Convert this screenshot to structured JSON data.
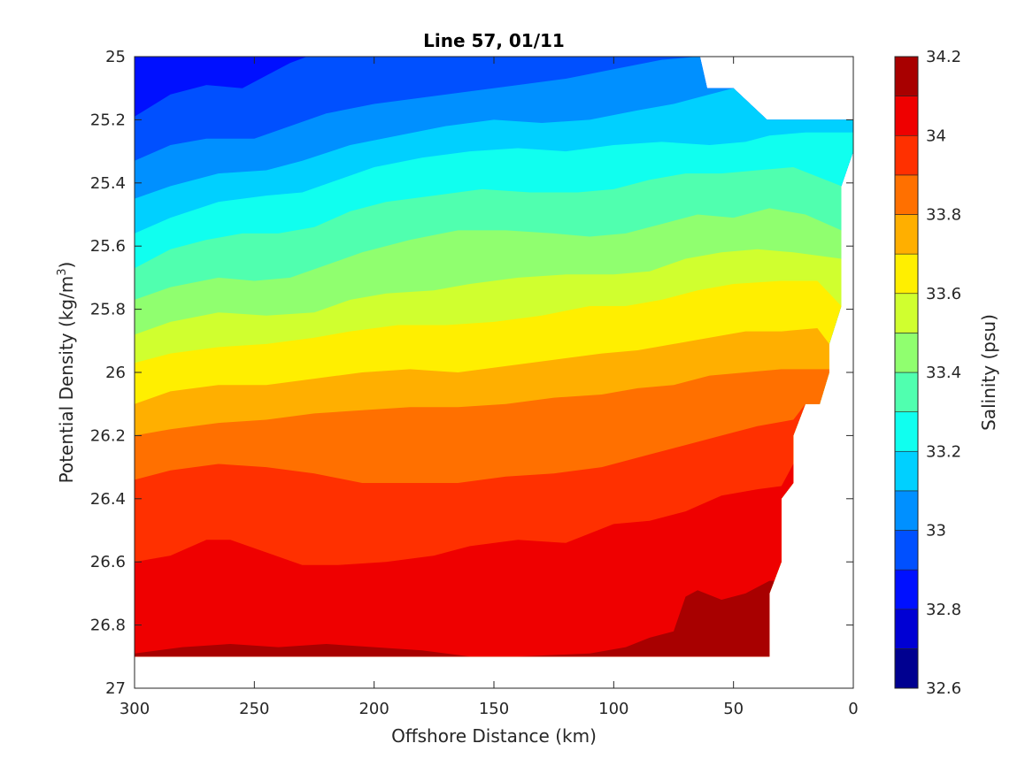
{
  "chart_data": {
    "type": "contour",
    "title": "Line 57, 01/11",
    "xlabel": "Offshore Distance (km)",
    "ylabel_main": "Potential Density (kg/m",
    "ylabel_sup": "3",
    "ylabel_close": ")",
    "xlim": [
      300,
      0
    ],
    "ylim": [
      25,
      27
    ],
    "x_ticks": [
      300,
      250,
      200,
      150,
      100,
      50,
      0
    ],
    "x_tick_labels": [
      "300",
      "250",
      "200",
      "150",
      "100",
      "50",
      "0"
    ],
    "y_ticks": [
      25,
      25.2,
      25.4,
      25.6,
      25.8,
      26,
      26.2,
      26.4,
      26.6,
      26.8,
      27
    ],
    "y_tick_labels": [
      "25",
      "25.2",
      "25.4",
      "25.6",
      "25.8",
      "26",
      "26.2",
      "26.4",
      "26.6",
      "26.8",
      "27"
    ],
    "grid": false,
    "colorbar": {
      "label": "Salinity (psu)",
      "range": [
        32.6,
        34.2
      ],
      "ticks": [
        32.6,
        32.8,
        33,
        33.2,
        33.4,
        33.6,
        33.8,
        34,
        34.2
      ],
      "tick_labels": [
        "32.6",
        "32.8",
        "33",
        "33.2",
        "33.4",
        "33.6",
        "33.8",
        "34",
        "34.2"
      ],
      "levels": [
        32.6,
        32.7,
        32.8,
        32.9,
        33.0,
        33.1,
        33.2,
        33.3,
        33.4,
        33.5,
        33.6,
        33.7,
        33.8,
        33.9,
        34.0,
        34.1,
        34.2
      ],
      "colors": [
        "#000090",
        "#0000d4",
        "#0010ff",
        "#0050ff",
        "#0090ff",
        "#00d0ff",
        "#10ffef",
        "#50ffaf",
        "#90ff6f",
        "#d0ff2f",
        "#ffef00",
        "#ffaf00",
        "#ff7000",
        "#ff3000",
        "#ef0000",
        "#a80000"
      ]
    },
    "contours": [
      {
        "level": 32.9,
        "points": [
          [
            300,
            25.19
          ],
          [
            285,
            25.12
          ],
          [
            270,
            25.09
          ],
          [
            255,
            25.1
          ],
          [
            245,
            25.06
          ],
          [
            235,
            25.02
          ],
          [
            228,
            25.0
          ]
        ]
      },
      {
        "level": 33.0,
        "points": [
          [
            300,
            25.33
          ],
          [
            285,
            25.28
          ],
          [
            270,
            25.26
          ],
          [
            250,
            25.26
          ],
          [
            235,
            25.22
          ],
          [
            220,
            25.18
          ],
          [
            200,
            25.15
          ],
          [
            180,
            25.13
          ],
          [
            160,
            25.11
          ],
          [
            140,
            25.09
          ],
          [
            120,
            25.07
          ],
          [
            100,
            25.04
          ],
          [
            80,
            25.01
          ],
          [
            65,
            25.0
          ]
        ]
      },
      {
        "level": 33.1,
        "points": [
          [
            300,
            25.45
          ],
          [
            285,
            25.41
          ],
          [
            265,
            25.37
          ],
          [
            245,
            25.36
          ],
          [
            230,
            25.33
          ],
          [
            210,
            25.28
          ],
          [
            190,
            25.25
          ],
          [
            170,
            25.22
          ],
          [
            150,
            25.2
          ],
          [
            130,
            25.21
          ],
          [
            110,
            25.2
          ],
          [
            90,
            25.17
          ],
          [
            75,
            25.15
          ],
          [
            60,
            25.12
          ],
          [
            50,
            25.1
          ]
        ]
      },
      {
        "level": 33.2,
        "points": [
          [
            300,
            25.56
          ],
          [
            285,
            25.51
          ],
          [
            265,
            25.46
          ],
          [
            245,
            25.44
          ],
          [
            230,
            25.43
          ],
          [
            215,
            25.39
          ],
          [
            200,
            25.35
          ],
          [
            180,
            25.32
          ],
          [
            160,
            25.3
          ],
          [
            140,
            25.29
          ],
          [
            120,
            25.3
          ],
          [
            100,
            25.28
          ],
          [
            80,
            25.27
          ],
          [
            60,
            25.28
          ],
          [
            45,
            25.27
          ],
          [
            35,
            25.25
          ],
          [
            20,
            25.24
          ],
          [
            0,
            25.24
          ]
        ]
      },
      {
        "level": 33.3,
        "points": [
          [
            300,
            25.67
          ],
          [
            285,
            25.61
          ],
          [
            270,
            25.58
          ],
          [
            255,
            25.56
          ],
          [
            240,
            25.56
          ],
          [
            225,
            25.54
          ],
          [
            210,
            25.49
          ],
          [
            195,
            25.46
          ],
          [
            175,
            25.44
          ],
          [
            155,
            25.42
          ],
          [
            135,
            25.43
          ],
          [
            115,
            25.43
          ],
          [
            100,
            25.42
          ],
          [
            85,
            25.39
          ],
          [
            70,
            25.37
          ],
          [
            55,
            25.37
          ],
          [
            40,
            25.36
          ],
          [
            25,
            25.35
          ],
          [
            5,
            25.41
          ]
        ]
      },
      {
        "level": 33.4,
        "points": [
          [
            300,
            25.77
          ],
          [
            285,
            25.73
          ],
          [
            265,
            25.7
          ],
          [
            250,
            25.71
          ],
          [
            235,
            25.7
          ],
          [
            220,
            25.66
          ],
          [
            205,
            25.62
          ],
          [
            185,
            25.58
          ],
          [
            165,
            25.55
          ],
          [
            145,
            25.55
          ],
          [
            125,
            25.56
          ],
          [
            110,
            25.57
          ],
          [
            95,
            25.56
          ],
          [
            80,
            25.53
          ],
          [
            65,
            25.5
          ],
          [
            50,
            25.51
          ],
          [
            35,
            25.48
          ],
          [
            20,
            25.5
          ],
          [
            5,
            25.55
          ]
        ]
      },
      {
        "level": 33.5,
        "points": [
          [
            300,
            25.88
          ],
          [
            285,
            25.84
          ],
          [
            265,
            25.81
          ],
          [
            245,
            25.82
          ],
          [
            225,
            25.81
          ],
          [
            210,
            25.77
          ],
          [
            195,
            25.75
          ],
          [
            175,
            25.74
          ],
          [
            160,
            25.72
          ],
          [
            140,
            25.7
          ],
          [
            120,
            25.69
          ],
          [
            100,
            25.69
          ],
          [
            85,
            25.68
          ],
          [
            70,
            25.64
          ],
          [
            55,
            25.62
          ],
          [
            40,
            25.61
          ],
          [
            25,
            25.62
          ],
          [
            5,
            25.64
          ]
        ]
      },
      {
        "level": 33.6,
        "points": [
          [
            300,
            25.97
          ],
          [
            285,
            25.94
          ],
          [
            265,
            25.92
          ],
          [
            245,
            25.91
          ],
          [
            225,
            25.89
          ],
          [
            210,
            25.87
          ],
          [
            190,
            25.85
          ],
          [
            170,
            25.85
          ],
          [
            150,
            25.84
          ],
          [
            130,
            25.82
          ],
          [
            110,
            25.79
          ],
          [
            95,
            25.79
          ],
          [
            80,
            25.77
          ],
          [
            65,
            25.74
          ],
          [
            50,
            25.72
          ],
          [
            30,
            25.71
          ],
          [
            15,
            25.71
          ],
          [
            5,
            25.79
          ]
        ]
      },
      {
        "level": 33.7,
        "points": [
          [
            300,
            26.1
          ],
          [
            285,
            26.06
          ],
          [
            265,
            26.04
          ],
          [
            245,
            26.04
          ],
          [
            225,
            26.02
          ],
          [
            205,
            26.0
          ],
          [
            185,
            25.99
          ],
          [
            165,
            26.0
          ],
          [
            145,
            25.98
          ],
          [
            125,
            25.96
          ],
          [
            105,
            25.94
          ],
          [
            90,
            25.93
          ],
          [
            75,
            25.91
          ],
          [
            60,
            25.89
          ],
          [
            45,
            25.87
          ],
          [
            30,
            25.87
          ],
          [
            15,
            25.86
          ],
          [
            10,
            25.91
          ]
        ]
      },
      {
        "level": 33.8,
        "points": [
          [
            300,
            26.2
          ],
          [
            285,
            26.18
          ],
          [
            265,
            26.16
          ],
          [
            245,
            26.15
          ],
          [
            225,
            26.13
          ],
          [
            205,
            26.12
          ],
          [
            185,
            26.11
          ],
          [
            165,
            26.11
          ],
          [
            145,
            26.1
          ],
          [
            125,
            26.08
          ],
          [
            105,
            26.07
          ],
          [
            90,
            26.05
          ],
          [
            75,
            26.04
          ],
          [
            60,
            26.01
          ],
          [
            45,
            26.0
          ],
          [
            30,
            25.99
          ],
          [
            10,
            25.99
          ]
        ]
      },
      {
        "level": 33.9,
        "points": [
          [
            300,
            26.34
          ],
          [
            285,
            26.31
          ],
          [
            265,
            26.29
          ],
          [
            245,
            26.3
          ],
          [
            225,
            26.32
          ],
          [
            205,
            26.35
          ],
          [
            185,
            26.35
          ],
          [
            165,
            26.35
          ],
          [
            145,
            26.33
          ],
          [
            125,
            26.32
          ],
          [
            105,
            26.3
          ],
          [
            85,
            26.26
          ],
          [
            70,
            26.23
          ],
          [
            55,
            26.2
          ],
          [
            40,
            26.17
          ],
          [
            25,
            26.15
          ],
          [
            20,
            26.1
          ],
          [
            15,
            26.1
          ]
        ]
      },
      {
        "level": 34.0,
        "points": [
          [
            300,
            26.6
          ],
          [
            285,
            26.58
          ],
          [
            270,
            26.53
          ],
          [
            260,
            26.53
          ],
          [
            245,
            26.57
          ],
          [
            230,
            26.61
          ],
          [
            215,
            26.61
          ],
          [
            195,
            26.6
          ],
          [
            175,
            26.58
          ],
          [
            160,
            26.55
          ],
          [
            140,
            26.53
          ],
          [
            120,
            26.54
          ],
          [
            100,
            26.48
          ],
          [
            85,
            26.47
          ],
          [
            70,
            26.44
          ],
          [
            55,
            26.39
          ],
          [
            40,
            26.37
          ],
          [
            30,
            26.36
          ],
          [
            25,
            26.29
          ]
        ]
      },
      {
        "level": 34.1,
        "points": [
          [
            300,
            26.89
          ],
          [
            280,
            26.87
          ],
          [
            260,
            26.86
          ],
          [
            240,
            26.87
          ],
          [
            220,
            26.86
          ],
          [
            200,
            26.87
          ],
          [
            180,
            26.88
          ],
          [
            160,
            26.9
          ],
          [
            140,
            26.9
          ],
          [
            110,
            26.89
          ],
          [
            95,
            26.87
          ],
          [
            85,
            26.84
          ],
          [
            75,
            26.82
          ],
          [
            70,
            26.71
          ],
          [
            65,
            26.69
          ],
          [
            55,
            26.72
          ],
          [
            45,
            26.7
          ],
          [
            40,
            26.68
          ],
          [
            35,
            26.66
          ]
        ]
      }
    ],
    "data_boundary": [
      [
        300,
        25.0
      ],
      [
        64,
        25.0
      ],
      [
        61,
        25.1
      ],
      [
        50,
        25.1
      ],
      [
        36,
        25.2
      ],
      [
        0,
        25.2
      ],
      [
        0,
        25.3
      ],
      [
        5,
        25.41
      ],
      [
        5,
        25.79
      ],
      [
        10,
        25.91
      ],
      [
        10,
        26.0
      ],
      [
        14,
        26.1
      ],
      [
        20,
        26.1
      ],
      [
        25,
        26.2
      ],
      [
        25,
        26.35
      ],
      [
        30,
        26.4
      ],
      [
        30,
        26.6
      ],
      [
        35,
        26.7
      ],
      [
        35,
        26.9
      ],
      [
        300,
        26.9
      ]
    ]
  }
}
